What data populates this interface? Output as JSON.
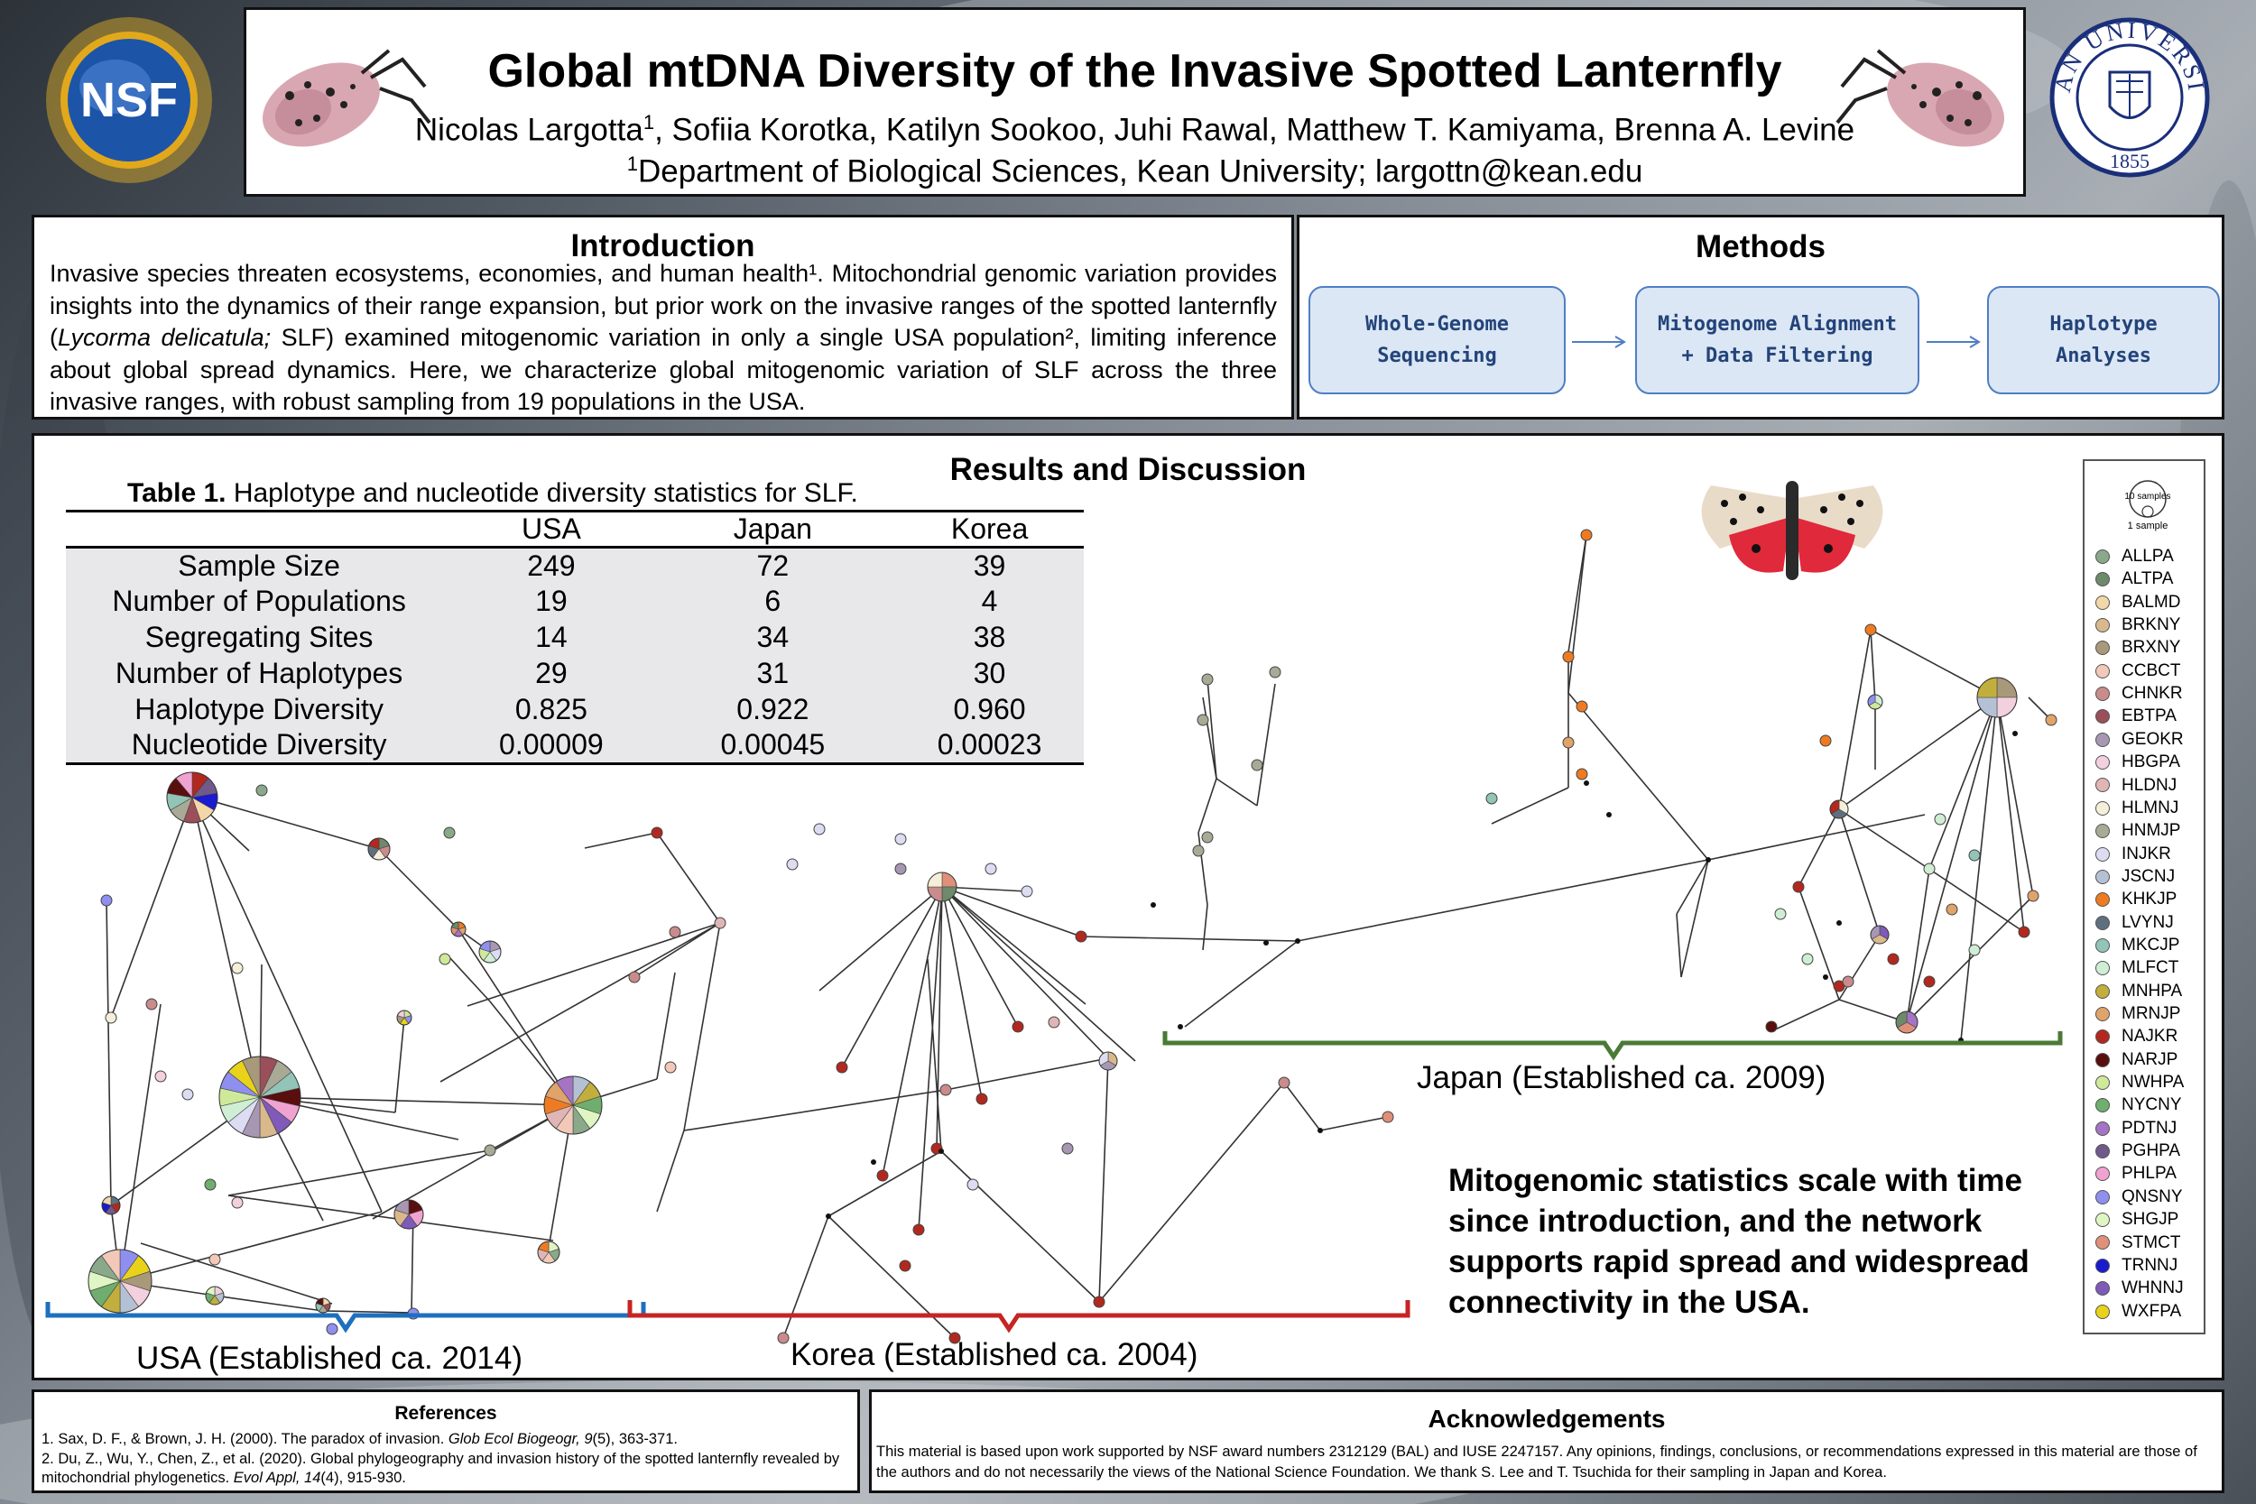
{
  "header": {
    "title": "Global mtDNA Diversity of the Invasive Spotted Lanternfly",
    "authors_pre": "Nicolas Largotta",
    "authors_sup": "1",
    "authors_post": ", Sofiia Korotka, Katilyn Sookoo, Juhi Rawal, Matthew T. Kamiyama, Brenna A. Levine",
    "affil_sup": "1",
    "affiliation": "Department of Biological Sciences, Kean University; largottn@kean.edu",
    "nsf_logo_text": "NSF",
    "kean_logo_text": "KEAN UNIVERSITY",
    "kean_logo_year": "1855"
  },
  "introduction": {
    "heading": "Introduction",
    "text_1": "Invasive species threaten ecosystems, economies, and human health¹. Mitochondrial genomic variation provides insights into the dynamics of their range expansion, but prior work on the invasive ranges of the spotted lanternfly (",
    "species": "Lycorma delicatula;",
    "text_2": " SLF) examined mitogenomic variation in only a single USA population², limiting inference about global spread dynamics. Here, we characterize global mitogenomic variation of SLF across the three invasive ranges, with robust sampling from 19 populations in the USA."
  },
  "methods": {
    "heading": "Methods",
    "step1": "Whole-Genome Sequencing",
    "step2": "Mitogenome Alignment + Data Filtering",
    "step3": "Haplotype Analyses"
  },
  "results": {
    "heading": "Results and Discussion",
    "table_caption_bold": "Table 1.",
    "table_caption": " Haplotype and nucleotide diversity statistics for SLF.",
    "table": {
      "columns": [
        "",
        "USA",
        "Japan",
        "Korea"
      ],
      "rows": [
        [
          "Sample Size",
          "249",
          "72",
          "39"
        ],
        [
          "Number of Populations",
          "19",
          "6",
          "4"
        ],
        [
          "Segregating Sites",
          "14",
          "34",
          "38"
        ],
        [
          "Number of Haplotypes",
          "29",
          "31",
          "30"
        ],
        [
          "Haplotype Diversity",
          "0.825",
          "0.922",
          "0.960"
        ],
        [
          "Nucleotide Diversity",
          "0.00009",
          "0.00045",
          "0.00023"
        ]
      ]
    },
    "usa_label": "USA (Established ca. 2014)",
    "korea_label": "Korea (Established ca. 2004)",
    "japan_label": "Japan (Established ca. 2009)",
    "conclusion": "Mitogenomic statistics scale with time since introduction, and the network supports rapid spread and widespread connectivity in the USA.",
    "colors": {
      "usa": "#1f6fbf",
      "korea": "#c62424",
      "japan": "#4a7a35"
    }
  },
  "legend": {
    "scale_large": "10 samples",
    "scale_small": "1 sample",
    "items": [
      {
        "code": "ALLPA",
        "color": "#8aa88a"
      },
      {
        "code": "ALTPA",
        "color": "#6d8a6a"
      },
      {
        "code": "BALMD",
        "color": "#f2d7a8"
      },
      {
        "code": "BRKNY",
        "color": "#d9b98c"
      },
      {
        "code": "BRXNY",
        "color": "#a8997a"
      },
      {
        "code": "CCBCT",
        "color": "#f2c9b8"
      },
      {
        "code": "CHNKR",
        "color": "#c98b8b"
      },
      {
        "code": "EBTPA",
        "color": "#9a4f5a"
      },
      {
        "code": "GEOKR",
        "color": "#a797b3"
      },
      {
        "code": "HBGPA",
        "color": "#f2d0dd"
      },
      {
        "code": "HLDNJ",
        "color": "#e0b5b5"
      },
      {
        "code": "HLMNJ",
        "color": "#f5efd9"
      },
      {
        "code": "HNMJP",
        "color": "#a9aa96"
      },
      {
        "code": "INJKR",
        "color": "#dcdcf2"
      },
      {
        "code": "JSCNJ",
        "color": "#b4c1d4"
      },
      {
        "code": "KHKJP",
        "color": "#ee7b22"
      },
      {
        "code": "LVYNJ",
        "color": "#5e7080"
      },
      {
        "code": "MKCJP",
        "color": "#92c4b7"
      },
      {
        "code": "MLFCT",
        "color": "#cfeed4"
      },
      {
        "code": "MNHPA",
        "color": "#c2ae3c"
      },
      {
        "code": "MRNJP",
        "color": "#e0a36a"
      },
      {
        "code": "NAJKR",
        "color": "#b2281e"
      },
      {
        "code": "NARJP",
        "color": "#5a0f0f"
      },
      {
        "code": "NWHPA",
        "color": "#cfe99a"
      },
      {
        "code": "NYCNY",
        "color": "#6fae6f"
      },
      {
        "code": "PDTNJ",
        "color": "#a574c4"
      },
      {
        "code": "PGHPA",
        "color": "#6f5a8a"
      },
      {
        "code": "PHLPA",
        "color": "#f0a3d0"
      },
      {
        "code": "QNSNY",
        "color": "#8f8ff0"
      },
      {
        "code": "SHGJP",
        "color": "#dff5c4"
      },
      {
        "code": "STMCT",
        "color": "#e0907a"
      },
      {
        "code": "TRNNJ",
        "color": "#1a1ad0"
      },
      {
        "code": "WHNNJ",
        "color": "#7f5ab8"
      },
      {
        "code": "WXFPA",
        "color": "#e8d31a"
      }
    ]
  },
  "references": {
    "heading": "References",
    "ref1_pre": "1. Sax, D. F., & Brown, J. H. (2000). The paradox of invasion. ",
    "ref1_journal": "Glob Ecol Biogeogr, 9",
    "ref1_post": "(5), 363-371.",
    "ref2_pre": "2. Du, Z., Wu, Y., Chen, Z., et al. (2020). Global phylogeography and invasion history of the spotted lanternfly revealed by mitochondrial  phylogenetics. ",
    "ref2_journal": "Evol Appl, 14",
    "ref2_post": "(4), 915-930."
  },
  "acknowledgements": {
    "heading": "Acknowledgements",
    "text": "This material is based upon work supported by NSF award numbers 2312129  (BAL) and IUSE 2247157. Any opinions, findings, conclusions, or recommendations expressed in this material are those of the authors and do not necessarily the views of the National Science Foundation.  We thank S. Lee and T. Tsuchida for their sampling in Japan and Korea."
  }
}
